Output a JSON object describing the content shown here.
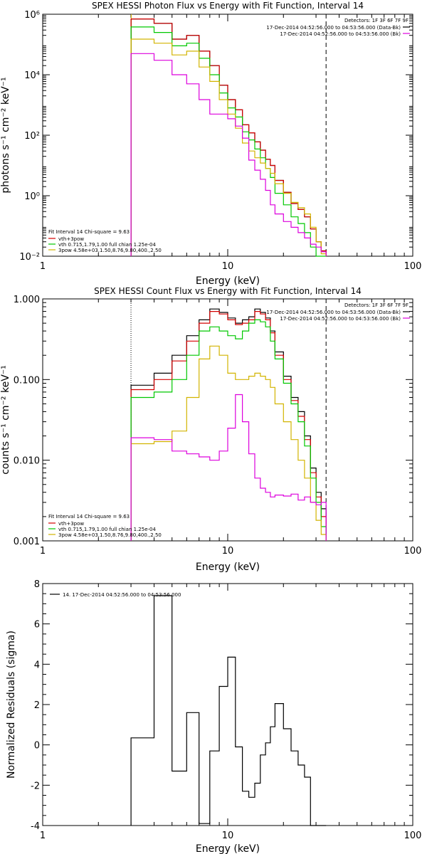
{
  "colors": {
    "total": "#000000",
    "vth_3pow": "#d40000",
    "vth": "#00c800",
    "3pow": "#d2b400",
    "bk": "#dd00dd",
    "background": "#ffffff"
  },
  "chart_data": [
    {
      "type": "line",
      "title": "SPEX HESSI Photon Flux vs Energy with Fit Function, Interval 14",
      "xlabel": "Energy (keV)",
      "ylabel": "photons s⁻¹ cm⁻² keV⁻¹",
      "xscale": "log",
      "yscale": "log",
      "xlim": [
        1,
        100
      ],
      "ylim": [
        0.01,
        1000000
      ],
      "xticks": [
        {
          "v": 1,
          "t": "1"
        },
        {
          "v": 10,
          "t": "10"
        },
        {
          "v": 100,
          "t": "100"
        }
      ],
      "yticks": [
        {
          "v": 0.01,
          "t": "10⁻²"
        },
        {
          "v": 1,
          "t": "10⁰"
        },
        {
          "v": 100,
          "t": "10²"
        },
        {
          "v": 10000,
          "t": "10⁴"
        },
        {
          "v": 1000000,
          "t": "10⁶"
        }
      ],
      "vlines": [
        {
          "x": 3.0,
          "style": "dotted",
          "color": "#000000"
        },
        {
          "x": 3.01,
          "style": "solid",
          "color": "#d2b400"
        },
        {
          "x": 34,
          "style": "dashed",
          "color": "#000000"
        }
      ],
      "top_right_legend": {
        "detectors": "Detectors: 1F 3F 6F 7F 9F",
        "lines": [
          {
            "text": "17-Dec-2014 04:52:56.000 to 04:53:56.000 (Data-Bk)",
            "color": "#000000"
          },
          {
            "text": "17-Dec-2014 04:52:56.000 to 04:53:56.000 (Bk)",
            "color": "#dd00dd"
          }
        ]
      },
      "fit_legend": {
        "header": "Fit Interval 14    Chi-square = 9.63",
        "lines": [
          {
            "text": "vth+3pow",
            "color": "#d40000"
          },
          {
            "text": "vth 0.715,1.79,1.00  full chian 1.25e-04",
            "color": "#00c800"
          },
          {
            "text": "3pow 4.58e+03,1.50,8.76,9.80,400.,2.50",
            "color": "#d2b400"
          }
        ]
      },
      "edges": [
        3,
        4,
        5,
        6,
        7,
        8,
        9,
        10,
        11,
        12,
        13,
        14,
        15,
        16,
        17,
        18,
        20,
        22,
        24,
        26,
        28,
        30,
        32,
        34
      ],
      "series": [
        {
          "key": "total",
          "color": "#000000",
          "values": [
            700000,
            500000,
            150000,
            200000,
            60000,
            20000,
            4500,
            1500,
            700,
            220,
            120,
            60,
            32,
            16,
            10,
            3.2,
            1.3,
            0.55,
            0.35,
            0.2,
            0.08,
            0.03,
            0.015
          ]
        },
        {
          "key": "vth_3pow",
          "color": "#d40000",
          "values": [
            700000,
            500000,
            150000,
            200000,
            60000,
            20000,
            4500,
            1500,
            700,
            220,
            120,
            60,
            32,
            16,
            10,
            3.2,
            1.3,
            0.55,
            0.35,
            0.2,
            0.08,
            0.03,
            0.015
          ]
        },
        {
          "key": "vth",
          "color": "#00c800",
          "values": [
            380000,
            250000,
            90000,
            110000,
            35000,
            10000,
            2500,
            800,
            400,
            130,
            70,
            35,
            18,
            8,
            4,
            1.2,
            0.5,
            0.2,
            0.12,
            0.06,
            0.02,
            0.01,
            0.005
          ]
        },
        {
          "key": "3pow",
          "color": "#d2b400",
          "values": [
            150000,
            110000,
            45000,
            60000,
            18000,
            6000,
            1500,
            500,
            170,
            55,
            30,
            18,
            12,
            8,
            5.5,
            2.5,
            1.2,
            0.6,
            0.4,
            0.25,
            0.09,
            0.03,
            0.012
          ]
        },
        {
          "key": "bk",
          "color": "#dd00dd",
          "values": [
            50000,
            30000,
            10000,
            5000,
            1500,
            500,
            500,
            350,
            200,
            80,
            15,
            7,
            3.5,
            1.5,
            0.5,
            0.25,
            0.14,
            0.09,
            0.06,
            0.04,
            0.025,
            0.02,
            0.014
          ]
        }
      ]
    },
    {
      "type": "line",
      "title": "SPEX HESSI Count Flux vs Energy with Fit Function, Interval 14",
      "xlabel": "Energy (keV)",
      "ylabel": "counts s⁻¹ cm⁻² keV⁻¹",
      "xscale": "log",
      "yscale": "log",
      "xlim": [
        1,
        100
      ],
      "ylim": [
        0.001,
        1.0
      ],
      "xticks": [
        {
          "v": 1,
          "t": "1"
        },
        {
          "v": 10,
          "t": "10"
        },
        {
          "v": 100,
          "t": "100"
        }
      ],
      "yticks": [
        {
          "v": 0.001,
          "t": "0.001"
        },
        {
          "v": 0.01,
          "t": "0.010"
        },
        {
          "v": 0.1,
          "t": "0.100"
        },
        {
          "v": 1,
          "t": "1.000"
        }
      ],
      "vlines": [
        {
          "x": 3.0,
          "style": "dotted",
          "color": "#000000"
        },
        {
          "x": 34,
          "style": "dashed",
          "color": "#000000"
        }
      ],
      "top_right_legend": {
        "detectors": "Detectors: 1F 3F 6F 7F 9F",
        "lines": [
          {
            "text": "17-Dec-2014 04:52:56.000 to 04:53:56.000 (Data-Bk)",
            "color": "#000000"
          },
          {
            "text": "17-Dec-2014 04:52:56.000 to 04:53:56.000 (Bk)",
            "color": "#dd00dd"
          }
        ]
      },
      "fit_legend": {
        "header": "Fit Interval 14    Chi-square = 9.63",
        "lines": [
          {
            "text": "vth+3pow",
            "color": "#d40000"
          },
          {
            "text": "vth 0.715,1.79,1.00  full chian 1.25e-04",
            "color": "#00c800"
          },
          {
            "text": "3pow 4.58e+03,1.50,8.76,9.80,400.,2.50",
            "color": "#d2b400"
          }
        ]
      },
      "edges": [
        3,
        4,
        5,
        6,
        7,
        8,
        9,
        10,
        11,
        12,
        13,
        14,
        15,
        16,
        17,
        18,
        20,
        22,
        24,
        26,
        28,
        30,
        32,
        34
      ],
      "series": [
        {
          "key": "total",
          "color": "#000000",
          "values": [
            0.085,
            0.12,
            0.2,
            0.35,
            0.55,
            0.75,
            0.68,
            0.58,
            0.5,
            0.55,
            0.6,
            0.75,
            0.68,
            0.58,
            0.4,
            0.22,
            0.11,
            0.06,
            0.04,
            0.02,
            0.008,
            0.004,
            0.0025
          ]
        },
        {
          "key": "vth_3pow",
          "color": "#d40000",
          "values": [
            0.075,
            0.1,
            0.17,
            0.3,
            0.5,
            0.7,
            0.65,
            0.55,
            0.48,
            0.5,
            0.55,
            0.7,
            0.65,
            0.55,
            0.38,
            0.2,
            0.1,
            0.055,
            0.035,
            0.018,
            0.007,
            0.0035,
            0.002
          ]
        },
        {
          "key": "vth",
          "color": "#00c800",
          "values": [
            0.06,
            0.07,
            0.1,
            0.2,
            0.4,
            0.45,
            0.4,
            0.35,
            0.32,
            0.4,
            0.5,
            0.55,
            0.52,
            0.45,
            0.3,
            0.18,
            0.09,
            0.05,
            0.03,
            0.015,
            0.006,
            0.003,
            0.0015
          ]
        },
        {
          "key": "3pow",
          "color": "#d2b400",
          "values": [
            0.016,
            0.017,
            0.023,
            0.06,
            0.18,
            0.26,
            0.2,
            0.12,
            0.1,
            0.1,
            0.11,
            0.12,
            0.11,
            0.1,
            0.08,
            0.05,
            0.03,
            0.018,
            0.01,
            0.006,
            0.003,
            0.0018,
            0.0012
          ]
        },
        {
          "key": "bk",
          "color": "#dd00dd",
          "values": [
            0.019,
            0.018,
            0.013,
            0.012,
            0.011,
            0.01,
            0.013,
            0.025,
            0.065,
            0.03,
            0.012,
            0.006,
            0.0045,
            0.004,
            0.0035,
            0.0037,
            0.0036,
            0.0038,
            0.0032,
            0.0035,
            0.003,
            0.0028,
            0.003
          ]
        }
      ]
    },
    {
      "type": "line",
      "title": "",
      "xlabel": "Energy (keV)",
      "ylabel": "Normalized Residuals (sigma)",
      "xscale": "log",
      "yscale": "linear",
      "xlim": [
        1,
        100
      ],
      "ylim": [
        -4,
        8
      ],
      "xticks": [
        {
          "v": 1,
          "t": "1"
        },
        {
          "v": 10,
          "t": "10"
        },
        {
          "v": 100,
          "t": "100"
        }
      ],
      "yticks": [
        {
          "v": -4,
          "t": "-4"
        },
        {
          "v": -2,
          "t": "-2"
        },
        {
          "v": 0,
          "t": "0"
        },
        {
          "v": 2,
          "t": "2"
        },
        {
          "v": 4,
          "t": "4"
        },
        {
          "v": 6,
          "t": "6"
        },
        {
          "v": 8,
          "t": "8"
        }
      ],
      "vlines": [],
      "top_left_legend": {
        "lines": [
          {
            "text": "14. 17-Dec-2014 04:52:56.000 to 04:53:56.000",
            "color": "#000000"
          }
        ]
      },
      "edges": [
        3,
        4,
        5,
        6,
        7,
        8,
        9,
        10,
        11,
        12,
        13,
        14,
        15,
        16,
        17,
        18,
        20,
        22,
        24,
        26,
        28,
        30,
        32,
        34
      ],
      "series": [
        {
          "key": "resid",
          "color": "#000000",
          "values": [
            0.35,
            7.4,
            -1.3,
            1.6,
            -3.9,
            -0.3,
            2.9,
            4.35,
            -0.1,
            -2.3,
            -2.6,
            -1.9,
            -0.5,
            0.1,
            0.9,
            2.05,
            0.8,
            -0.3,
            -1.0,
            -1.6,
            -4.0,
            -4.0,
            -4.0
          ]
        }
      ]
    }
  ]
}
